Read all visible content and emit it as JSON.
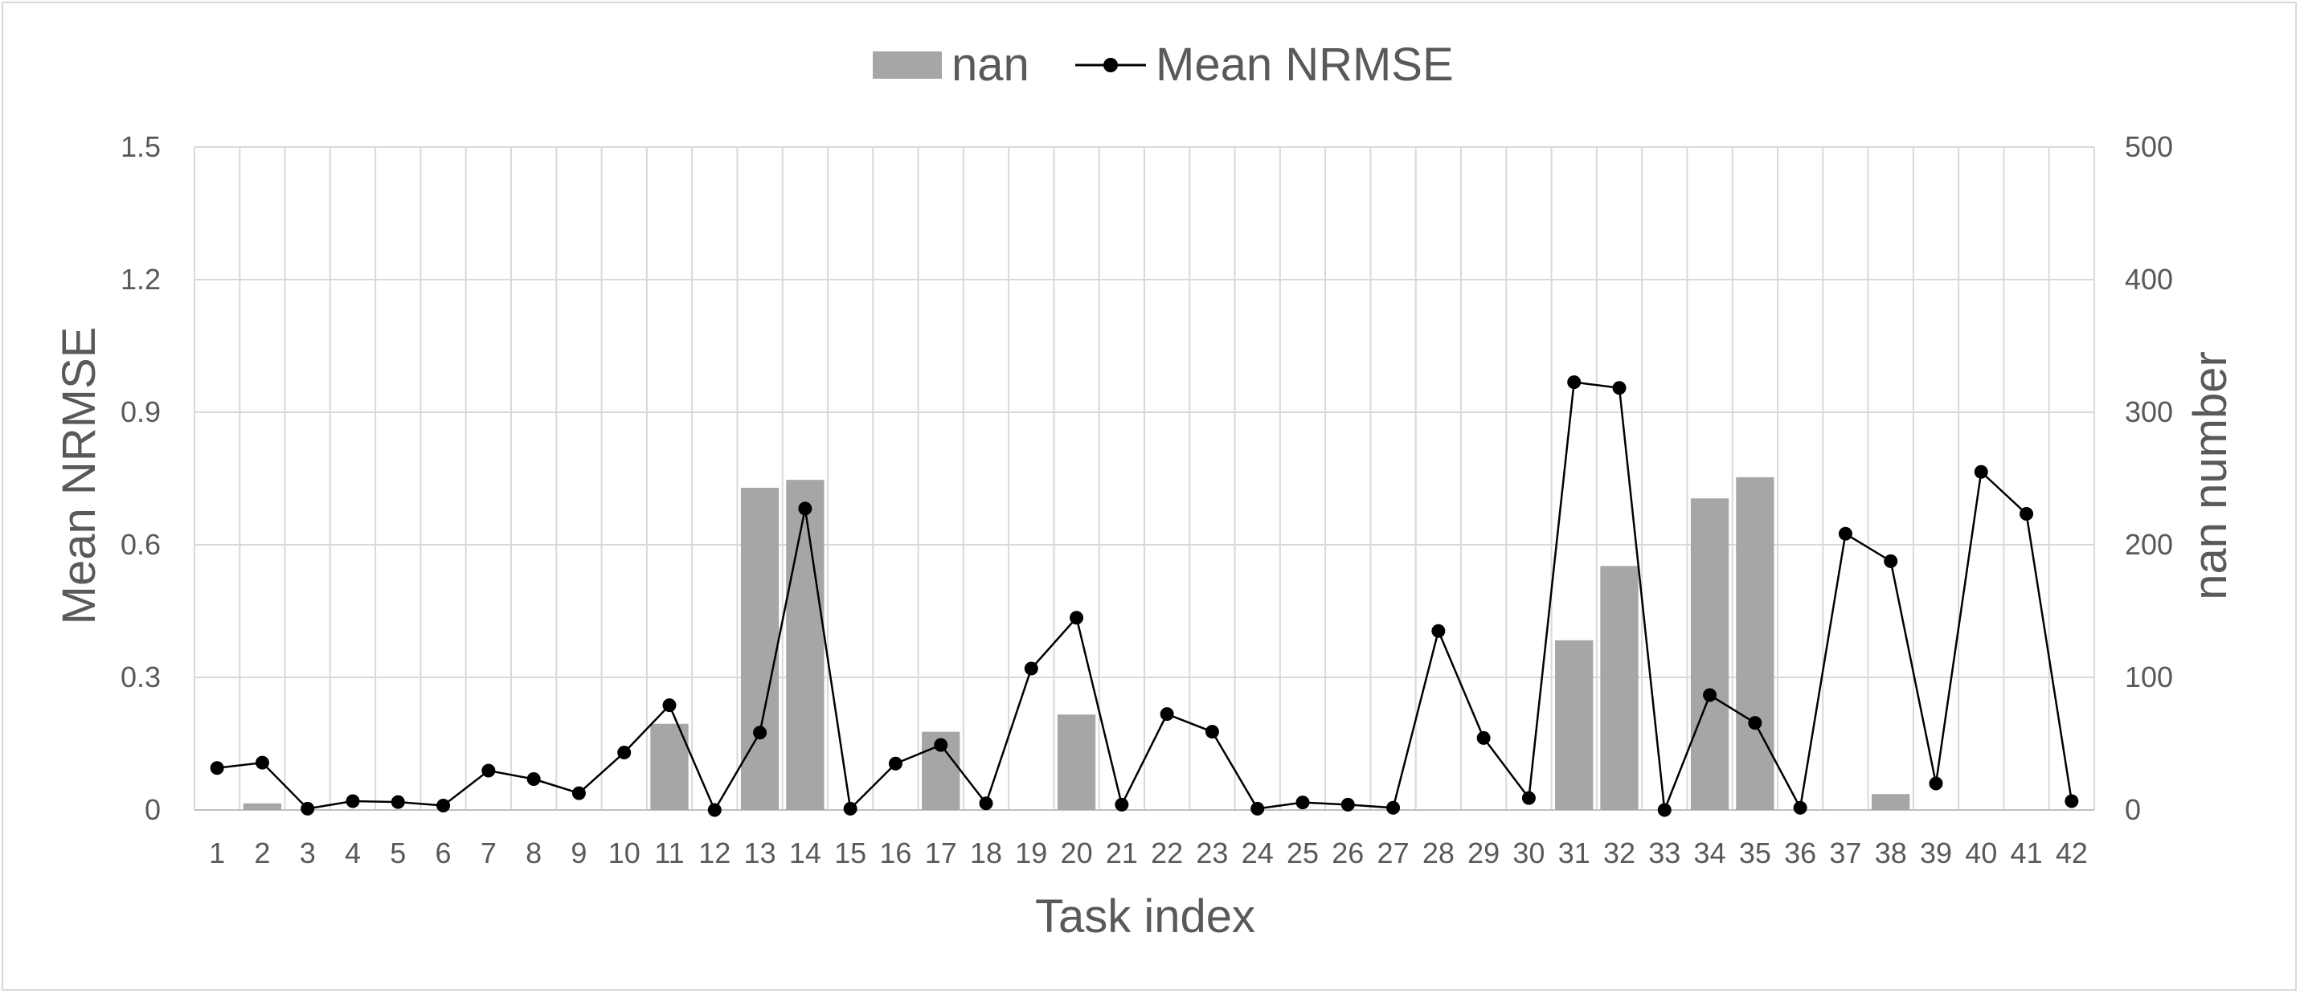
{
  "chart_data": {
    "type": "bar+line",
    "title": "",
    "xlabel": "Task index",
    "ylabel_left": "Mean NRMSE",
    "ylabel_right": "nan number",
    "ylim_left": [
      0,
      1.5
    ],
    "yticks_left": [
      "0",
      "0.3",
      "0.6",
      "0.9",
      "1.2",
      "1.5"
    ],
    "ylim_right": [
      0,
      500
    ],
    "yticks_right": [
      "0",
      "100",
      "200",
      "300",
      "400",
      "500"
    ],
    "grid": true,
    "legend_position": "top",
    "categories": [
      "1",
      "2",
      "3",
      "4",
      "5",
      "6",
      "7",
      "8",
      "9",
      "10",
      "11",
      "12",
      "13",
      "14",
      "15",
      "16",
      "17",
      "18",
      "19",
      "20",
      "21",
      "22",
      "23",
      "24",
      "25",
      "26",
      "27",
      "28",
      "29",
      "30",
      "31",
      "32",
      "33",
      "34",
      "35",
      "36",
      "37",
      "38",
      "39",
      "40",
      "41",
      "42"
    ],
    "series": [
      {
        "name": "nan",
        "kind": "bar",
        "axis": "right",
        "color": "#a6a6a6",
        "values": [
          0,
          5,
          0,
          0,
          0,
          0,
          0,
          0,
          0,
          0,
          65,
          0,
          243,
          249,
          0,
          0,
          59,
          0,
          0,
          72,
          0,
          0,
          0,
          0,
          0,
          0,
          0,
          0,
          0,
          0,
          128,
          184,
          0,
          235,
          251,
          0,
          0,
          12,
          0,
          0,
          0,
          0
        ]
      },
      {
        "name": "Mean NRMSE",
        "kind": "line",
        "axis": "left",
        "color": "#000000",
        "values": [
          0.095,
          0.107,
          0.003,
          0.02,
          0.018,
          0.01,
          0.089,
          0.07,
          0.038,
          0.13,
          0.237,
          0.0,
          0.175,
          0.682,
          0.003,
          0.105,
          0.147,
          0.015,
          0.32,
          0.435,
          0.012,
          0.217,
          0.177,
          0.003,
          0.017,
          0.012,
          0.005,
          0.405,
          0.163,
          0.027,
          0.968,
          0.955,
          0.0,
          0.26,
          0.197,
          0.005,
          0.625,
          0.563,
          0.06,
          0.765,
          0.67,
          0.02
        ]
      }
    ]
  }
}
